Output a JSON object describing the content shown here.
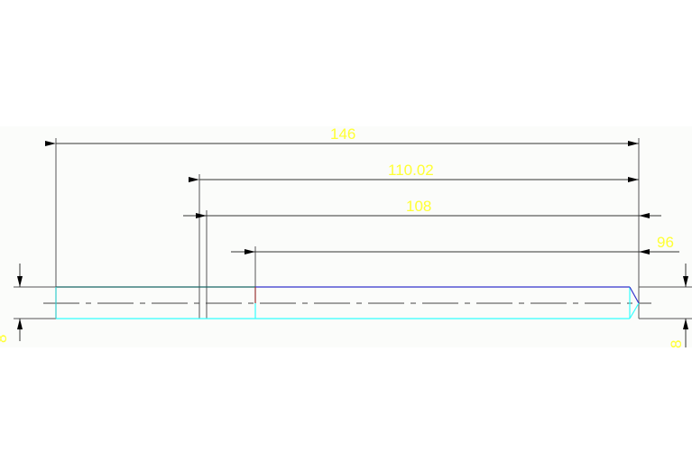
{
  "drawing": {
    "dimensions": {
      "overall_length": "146",
      "length_a": "110.02",
      "length_b": "108",
      "length_c": "96",
      "height_left": "8",
      "height_right": "8"
    },
    "colors": {
      "background": "#fbfcfa",
      "dimension_lines": "#333333",
      "dimension_text": "#ffff33",
      "part_outline_cyan": "#33ffff",
      "part_outline_blue": "#3333cc",
      "part_outline_teal": "#1a6666",
      "part_outline_red": "#993333"
    }
  }
}
